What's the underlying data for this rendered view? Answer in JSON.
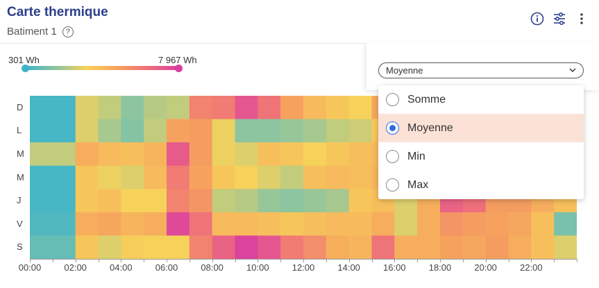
{
  "header": {
    "title": "Carte thermique",
    "subtitle": "Batiment 1",
    "help_glyph": "?"
  },
  "icons": [
    "info-icon",
    "filter-settings-icon",
    "more-vertical-icon"
  ],
  "legend": {
    "min_label": "301 Wh",
    "max_label": "7 967 Wh",
    "min_color": "#3fb4c9",
    "max_color": "#d93ea0"
  },
  "aggregation": {
    "selected": "Moyenne",
    "options": [
      {
        "label": "Somme",
        "selected": false
      },
      {
        "label": "Moyenne",
        "selected": true
      },
      {
        "label": "Min",
        "selected": false
      },
      {
        "label": "Max",
        "selected": false
      }
    ],
    "accent_color": "#2d6be4",
    "highlight_color": "#fbe1d6"
  },
  "chart_data": {
    "type": "heatmap",
    "unit": "Wh",
    "days": [
      "D",
      "L",
      "M",
      "M",
      "J",
      "V",
      "S"
    ],
    "x_tick_labels": [
      "00:00",
      "02:00",
      "04:00",
      "06:00",
      "08:00",
      "10:00",
      "12:00",
      "14:00",
      "16:00",
      "18:00",
      "20:00",
      "22:00"
    ],
    "colorscale": [
      "#3fb4c9",
      "#8cc5a0",
      "#f7d25a",
      "#f6a25e",
      "#ee6f7b",
      "#d93ea0"
    ],
    "range": [
      301,
      7967
    ],
    "hours": 24,
    "levels": [
      [
        0.02,
        0.02,
        0.35,
        0.3,
        0.2,
        0.28,
        0.3,
        0.72,
        0.75,
        0.9,
        0.78,
        0.6,
        0.5,
        0.45,
        0.4,
        0.58,
        null,
        null,
        null,
        null,
        null,
        null,
        null,
        null
      ],
      [
        0.02,
        0.02,
        0.35,
        0.25,
        0.18,
        0.3,
        0.6,
        0.62,
        0.38,
        0.2,
        0.2,
        0.22,
        0.25,
        0.3,
        0.32,
        0.45,
        null,
        null,
        null,
        null,
        null,
        null,
        null,
        null
      ],
      [
        0.3,
        0.3,
        0.55,
        0.5,
        0.48,
        0.52,
        0.88,
        0.62,
        0.38,
        0.35,
        0.48,
        0.45,
        0.4,
        0.45,
        0.48,
        0.5,
        null,
        null,
        null,
        null,
        null,
        null,
        null,
        null
      ],
      [
        0.02,
        0.02,
        0.45,
        0.38,
        0.35,
        0.5,
        0.75,
        0.6,
        0.45,
        0.4,
        0.35,
        0.3,
        0.48,
        0.5,
        0.48,
        0.52,
        null,
        null,
        null,
        null,
        null,
        null,
        null,
        null
      ],
      [
        0.02,
        0.02,
        0.45,
        0.48,
        0.4,
        0.4,
        0.72,
        0.65,
        0.3,
        0.28,
        0.22,
        0.2,
        0.22,
        0.25,
        0.45,
        0.48,
        0.35,
        0.55,
        0.85,
        0.8,
        0.62,
        0.62,
        0.55,
        0.48
      ],
      [
        0.05,
        0.05,
        0.55,
        0.58,
        0.52,
        0.55,
        0.95,
        0.78,
        0.5,
        0.5,
        0.48,
        0.45,
        0.48,
        0.5,
        0.5,
        0.55,
        0.35,
        0.55,
        0.65,
        0.62,
        0.6,
        0.58,
        0.48,
        0.15
      ],
      [
        0.1,
        0.1,
        0.45,
        0.35,
        0.42,
        0.4,
        0.4,
        0.72,
        0.85,
        0.98,
        0.9,
        0.75,
        0.68,
        0.55,
        0.52,
        0.78,
        0.55,
        0.55,
        0.6,
        0.58,
        0.62,
        0.55,
        0.48,
        0.35
      ]
    ]
  }
}
